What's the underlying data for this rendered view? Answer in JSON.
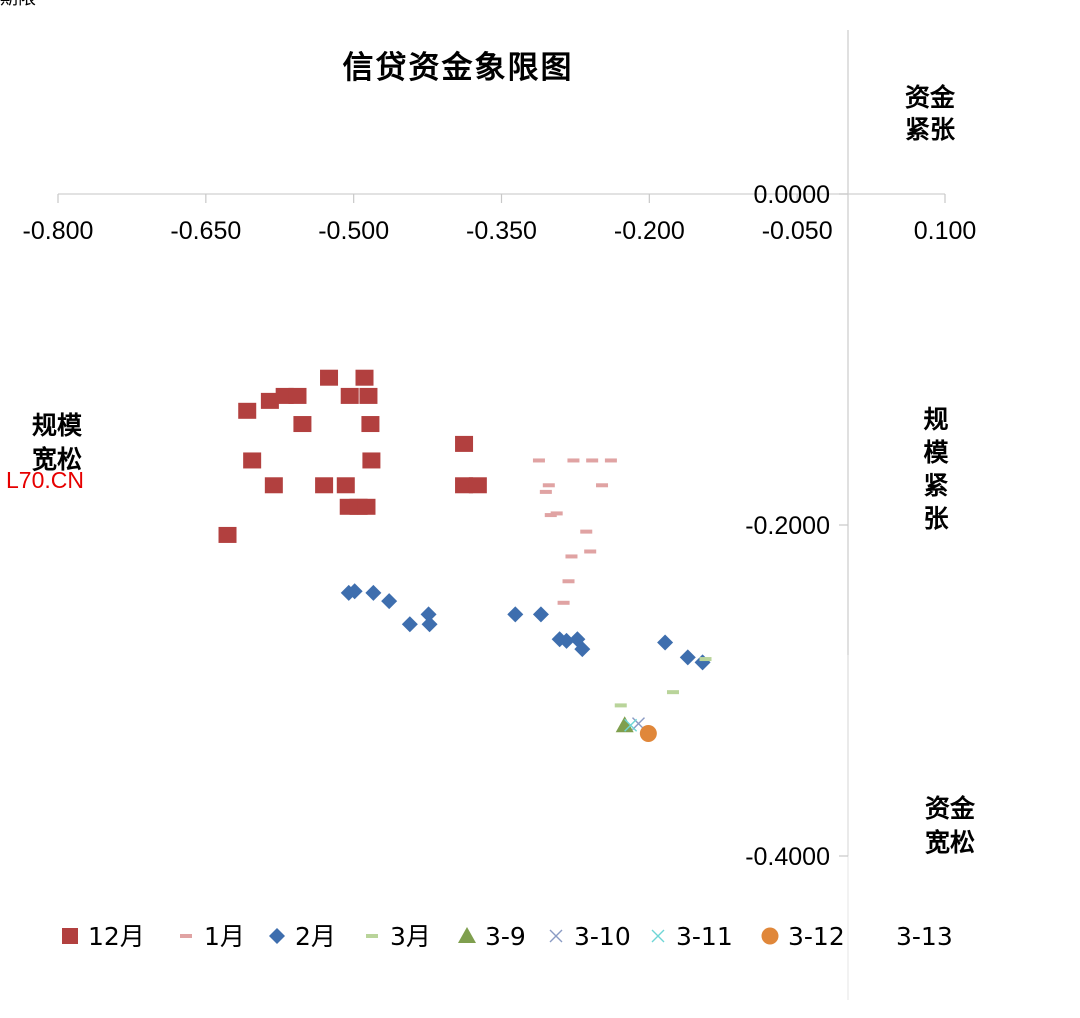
{
  "corner_text": "期限",
  "watermark": "L70.CN",
  "quadrant_labels": {
    "top_right": [
      "资金",
      "紧张"
    ],
    "left": [
      "规模",
      "宽松"
    ],
    "right": [
      "规",
      "模",
      "紧",
      "张"
    ],
    "bottom_right": [
      "资金",
      "宽松"
    ]
  },
  "colors": {
    "dec": "#B2403F",
    "jan": "#E0A3A3",
    "feb": "#3E6EAE",
    "mar": "#B9D49A",
    "m3_9": "#7F9F4E",
    "m3_10": "#8A9BC4",
    "m3_11": "#6FD6D6",
    "m3_12": "#E0873A"
  },
  "chart_data": {
    "type": "scatter",
    "title": "信贷资金象限图",
    "xlim": [
      -0.8,
      0.1
    ],
    "ylim": [
      -0.4,
      0.0
    ],
    "x_ticks": [
      -0.8,
      -0.65,
      -0.5,
      -0.35,
      -0.2,
      -0.05,
      0.1
    ],
    "x_tick_labels": [
      "-0.800",
      "-0.650",
      "-0.500",
      "-0.350",
      "-0.200",
      "-0.050",
      "0.100"
    ],
    "y_ticks": [
      0.0,
      -0.2,
      -0.4
    ],
    "y_tick_labels": [
      "0.0000",
      "-0.2000",
      "-0.4000"
    ],
    "grid": false,
    "legend_placement": "bottom",
    "series": [
      {
        "name": "12月",
        "marker": "square",
        "color": "#B2403F",
        "points": [
          [
            -0.628,
            -0.206
          ],
          [
            -0.608,
            -0.131
          ],
          [
            -0.603,
            -0.161
          ],
          [
            -0.585,
            -0.125
          ],
          [
            -0.581,
            -0.176
          ],
          [
            -0.57,
            -0.122
          ],
          [
            -0.557,
            -0.122
          ],
          [
            -0.552,
            -0.139
          ],
          [
            -0.53,
            -0.176
          ],
          [
            -0.525,
            -0.111
          ],
          [
            -0.508,
            -0.176
          ],
          [
            -0.505,
            -0.189
          ],
          [
            -0.504,
            -0.122
          ],
          [
            -0.495,
            -0.189
          ],
          [
            -0.489,
            -0.111
          ],
          [
            -0.487,
            -0.189
          ],
          [
            -0.485,
            -0.122
          ],
          [
            -0.483,
            -0.139
          ],
          [
            -0.482,
            -0.161
          ],
          [
            -0.388,
            -0.151
          ],
          [
            -0.388,
            -0.176
          ],
          [
            -0.374,
            -0.176
          ]
        ]
      },
      {
        "name": "1月",
        "marker": "dash",
        "color": "#E0A3A3",
        "points": [
          [
            -0.312,
            -0.161
          ],
          [
            -0.305,
            -0.18
          ],
          [
            -0.302,
            -0.176
          ],
          [
            -0.3,
            -0.194
          ],
          [
            -0.294,
            -0.193
          ],
          [
            -0.287,
            -0.247
          ],
          [
            -0.282,
            -0.234
          ],
          [
            -0.279,
            -0.219
          ],
          [
            -0.277,
            -0.161
          ],
          [
            -0.264,
            -0.204
          ],
          [
            -0.26,
            -0.216
          ],
          [
            -0.258,
            -0.161
          ],
          [
            -0.248,
            -0.176
          ],
          [
            -0.239,
            -0.161
          ]
        ]
      },
      {
        "name": "2月",
        "marker": "diamond",
        "color": "#3E6EAE",
        "points": [
          [
            -0.505,
            -0.241
          ],
          [
            -0.499,
            -0.24
          ],
          [
            -0.48,
            -0.241
          ],
          [
            -0.464,
            -0.246
          ],
          [
            -0.443,
            -0.26
          ],
          [
            -0.424,
            -0.254
          ],
          [
            -0.423,
            -0.26
          ],
          [
            -0.336,
            -0.254
          ],
          [
            -0.31,
            -0.254
          ],
          [
            -0.291,
            -0.269
          ],
          [
            -0.284,
            -0.27
          ],
          [
            -0.273,
            -0.269
          ],
          [
            -0.268,
            -0.275
          ],
          [
            -0.184,
            -0.271
          ],
          [
            -0.161,
            -0.28
          ],
          [
            -0.146,
            -0.283
          ]
        ]
      },
      {
        "name": "3月",
        "marker": "dash",
        "color": "#B9D49A",
        "points": [
          [
            -0.229,
            -0.309
          ],
          [
            -0.176,
            -0.301
          ],
          [
            -0.143,
            -0.281
          ]
        ]
      },
      {
        "name": "3-9",
        "marker": "triangle",
        "color": "#7F9F4E",
        "points": [
          [
            -0.225,
            -0.321
          ]
        ]
      },
      {
        "name": "3-10",
        "marker": "x",
        "color": "#8A9BC4",
        "points": [
          [
            -0.211,
            -0.32
          ]
        ]
      },
      {
        "name": "3-11",
        "marker": "x",
        "color": "#6FD6D6",
        "points": [
          [
            -0.219,
            -0.321
          ]
        ]
      },
      {
        "name": "3-12",
        "marker": "circle",
        "color": "#E0873A",
        "points": [
          [
            -0.201,
            -0.326
          ]
        ]
      },
      {
        "name": "3-13",
        "marker": "none",
        "color": "#FFFFFF",
        "points": []
      }
    ]
  }
}
